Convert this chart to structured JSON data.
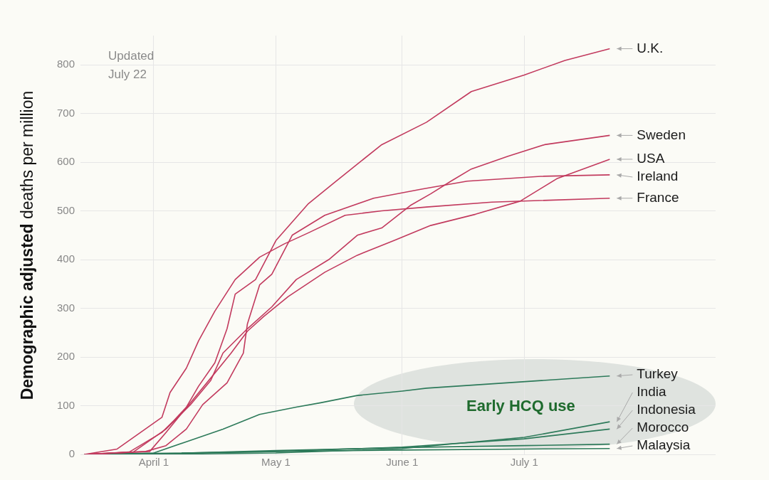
{
  "chart_data": {
    "type": "line",
    "ylabel": "Demographic adjusted deaths per million",
    "annotations": [
      "Updated July 22",
      "Early HCQ use"
    ],
    "xlim": [
      "--03-14",
      "--08-17"
    ],
    "xticks": [
      {
        "value": "--04-01",
        "label": "April 1"
      },
      {
        "value": "--05-01",
        "label": "May 1"
      },
      {
        "value": "--06-01",
        "label": "June 1"
      },
      {
        "value": "--07-01",
        "label": "July 1"
      }
    ],
    "ylim": [
      0,
      860
    ],
    "yticks": [
      0,
      100,
      200,
      300,
      400,
      500,
      600,
      700,
      800
    ],
    "grid": true,
    "legend": false,
    "marker": "none",
    "line_style": "solid",
    "series": [
      {
        "name": "U.K.",
        "color": "#c23a5e",
        "x": [
          "--03-15",
          "--03-20",
          "--03-26",
          "--04-03",
          "--04-06",
          "--04-09",
          "--04-12",
          "--04-16",
          "--04-19",
          "--04-21",
          "--04-26",
          "--05-01",
          "--05-09",
          "--05-18",
          "--05-27",
          "--06-07",
          "--06-18",
          "--07-01",
          "--07-11",
          "--07-22"
        ],
        "values": [
          0,
          2,
          5,
          45,
          70,
          97,
          140,
          188,
          258,
          329,
          359,
          439,
          515,
          576,
          636,
          682,
          745,
          779,
          809,
          833
        ]
      },
      {
        "name": "Sweden",
        "color": "#c23a5e",
        "x": [
          "--03-15",
          "--03-27",
          "--04-04",
          "--04-10",
          "--04-15",
          "--04-18",
          "--04-24",
          "--04-30",
          "--05-06",
          "--05-14",
          "--05-21",
          "--05-27",
          "--06-03",
          "--06-08",
          "--06-13",
          "--06-18",
          "--06-27",
          "--07-06",
          "--07-22"
        ],
        "values": [
          0,
          5,
          52,
          102,
          152,
          208,
          258,
          303,
          359,
          400,
          450,
          465,
          511,
          535,
          561,
          586,
          612,
          636,
          655
        ]
      },
      {
        "name": "USA",
        "color": "#c23a5e",
        "x": [
          "--03-15",
          "--03-31",
          "--04-04",
          "--04-10",
          "--04-16",
          "--04-20",
          "--04-24",
          "--04-28",
          "--05-04",
          "--05-13",
          "--05-21",
          "--05-30",
          "--06-08",
          "--06-19",
          "--06-30",
          "--07-09",
          "--07-22"
        ],
        "values": [
          0,
          6,
          45,
          106,
          167,
          208,
          253,
          283,
          324,
          374,
          409,
          439,
          470,
          493,
          520,
          566,
          606
        ]
      },
      {
        "name": "Ireland",
        "color": "#c23a5e",
        "x": [
          "--03-15",
          "--03-30",
          "--04-04",
          "--04-09",
          "--04-13",
          "--04-19",
          "--04-23",
          "--04-24",
          "--04-27",
          "--04-30",
          "--05-05",
          "--05-13",
          "--05-25",
          "--06-06",
          "--06-17",
          "--07-05",
          "--07-22"
        ],
        "values": [
          0,
          6,
          18,
          52,
          102,
          147,
          208,
          268,
          348,
          370,
          450,
          491,
          526,
          545,
          561,
          571,
          574
        ]
      },
      {
        "name": "France",
        "color": "#c23a5e",
        "x": [
          "--03-15",
          "--03-23",
          "--04-03",
          "--04-05",
          "--04-09",
          "--04-12",
          "--04-16",
          "--04-19",
          "--04-21",
          "--04-27",
          "--05-03",
          "--05-09",
          "--05-18",
          "--05-27",
          "--06-07",
          "--06-23",
          "--07-22"
        ],
        "values": [
          0,
          11,
          76,
          127,
          177,
          233,
          294,
          333,
          359,
          405,
          432,
          455,
          491,
          500,
          508,
          518,
          526
        ]
      },
      {
        "name": "Turkey",
        "color": "#2d7a5a",
        "x": [
          "--03-15",
          "--04-01",
          "--04-09",
          "--04-18",
          "--04-27",
          "--05-06",
          "--05-12",
          "--05-21",
          "--06-01",
          "--06-07",
          "--07-22"
        ],
        "values": [
          0,
          3,
          26,
          52,
          82,
          97,
          106,
          121,
          130,
          136,
          161
        ]
      },
      {
        "name": "India",
        "color": "#2d7a5a",
        "x": [
          "--03-15",
          "--04-01",
          "--05-01",
          "--06-01",
          "--07-01",
          "--07-22"
        ],
        "values": [
          0,
          0,
          3,
          12,
          35,
          67
        ]
      },
      {
        "name": "Indonesia",
        "color": "#2d7a5a",
        "x": [
          "--03-15",
          "--04-01",
          "--05-01",
          "--06-01",
          "--07-01",
          "--07-22"
        ],
        "values": [
          0,
          1,
          6,
          15,
          32,
          52
        ]
      },
      {
        "name": "Morocco",
        "color": "#2d7a5a",
        "x": [
          "--03-15",
          "--04-01",
          "--05-01",
          "--06-01",
          "--07-01",
          "--07-22"
        ],
        "values": [
          0,
          1,
          8,
          14,
          18,
          21
        ]
      },
      {
        "name": "Malaysia",
        "color": "#2d7a5a",
        "x": [
          "--03-15",
          "--04-01",
          "--05-01",
          "--06-01",
          "--07-01",
          "--07-22"
        ],
        "values": [
          0,
          2,
          6,
          9,
          11,
          12
        ]
      }
    ]
  }
}
